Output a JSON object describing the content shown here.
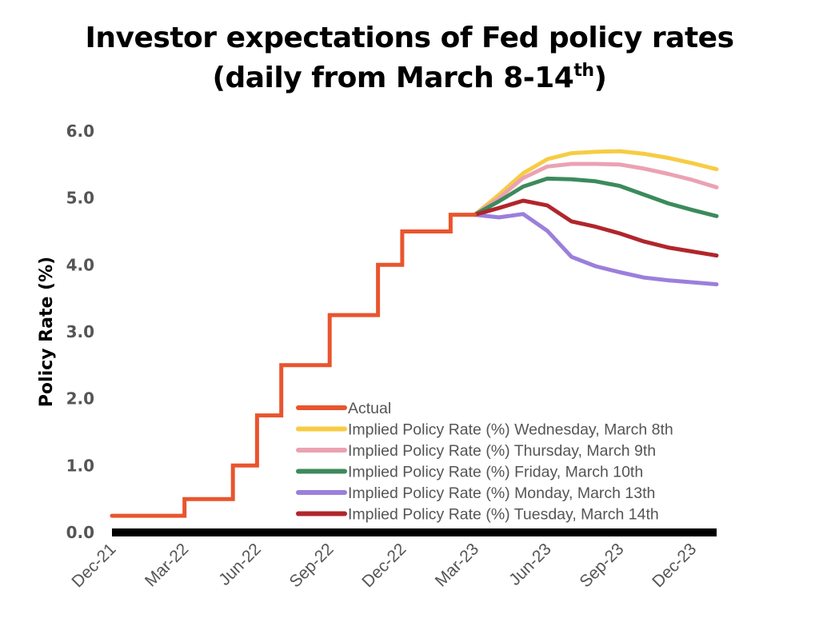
{
  "chart_data": {
    "type": "line",
    "title_line1": "Investor expectations of Fed policy rates",
    "title_line2": "(daily from March 8-14",
    "title_sup": "th",
    "title_close": ")",
    "ylabel": "Policy Rate (%)",
    "xlabel": "",
    "ylim": [
      0,
      6
    ],
    "yticks": [
      "0.0",
      "1.0",
      "2.0",
      "3.0",
      "4.0",
      "5.0",
      "6.0"
    ],
    "x_ticks": [
      "Dec-21",
      "Mar-22",
      "Jun-22",
      "Sep-22",
      "Dec-22",
      "Mar-23",
      "Jun-23",
      "Sep-23",
      "Dec-23"
    ],
    "xlim": [
      "Dec-21",
      "Jan-24"
    ],
    "grid": false,
    "legend_position": "bottom-right",
    "series": [
      {
        "name": "Actual",
        "color": "#e8552e",
        "step": true,
        "x": [
          "Dec-21",
          "Mar-22",
          "May-22",
          "Jun-22",
          "Jul-22",
          "Sep-22",
          "Nov-22",
          "Dec-22",
          "Feb-23",
          "Mar-23"
        ],
        "y": [
          0.25,
          0.5,
          1.0,
          1.75,
          2.5,
          3.25,
          4.0,
          4.5,
          4.75,
          4.75
        ]
      },
      {
        "name": "Implied Policy Rate (%) Wednesday, March 8th",
        "color": "#f7cc44",
        "x": [
          "Mar-23",
          "Apr-23",
          "May-23",
          "Jun-23",
          "Jul-23",
          "Aug-23",
          "Sep-23",
          "Oct-23",
          "Nov-23",
          "Dec-23",
          "Jan-24"
        ],
        "y": [
          4.75,
          5.05,
          5.37,
          5.58,
          5.67,
          5.69,
          5.7,
          5.66,
          5.6,
          5.52,
          5.43
        ]
      },
      {
        "name": "Implied Policy Rate (%) Thursday, March 9th",
        "color": "#eba2b2",
        "x": [
          "Mar-23",
          "Apr-23",
          "May-23",
          "Jun-23",
          "Jul-23",
          "Aug-23",
          "Sep-23",
          "Oct-23",
          "Nov-23",
          "Dec-23",
          "Jan-24"
        ],
        "y": [
          4.75,
          5.0,
          5.3,
          5.47,
          5.51,
          5.51,
          5.5,
          5.44,
          5.36,
          5.27,
          5.16
        ]
      },
      {
        "name": "Implied Policy Rate (%) Friday, March 10th",
        "color": "#3c8a5c",
        "x": [
          "Mar-23",
          "Apr-23",
          "May-23",
          "Jun-23",
          "Jul-23",
          "Aug-23",
          "Sep-23",
          "Oct-23",
          "Nov-23",
          "Dec-23",
          "Jan-24"
        ],
        "y": [
          4.75,
          4.95,
          5.17,
          5.29,
          5.28,
          5.25,
          5.18,
          5.05,
          4.92,
          4.82,
          4.73
        ]
      },
      {
        "name": "Implied Policy Rate (%) Monday, March 13th",
        "color": "#9b7fdb",
        "x": [
          "Mar-23",
          "Apr-23",
          "May-23",
          "Jun-23",
          "Jul-23",
          "Aug-23",
          "Sep-23",
          "Oct-23",
          "Nov-23",
          "Dec-23",
          "Jan-24"
        ],
        "y": [
          4.75,
          4.71,
          4.76,
          4.51,
          4.12,
          3.98,
          3.89,
          3.81,
          3.77,
          3.74,
          3.71
        ]
      },
      {
        "name": "Implied Policy Rate (%) Tuesday, March 14th",
        "color": "#b0262c",
        "x": [
          "Mar-23",
          "Apr-23",
          "May-23",
          "Jun-23",
          "Jul-23",
          "Aug-23",
          "Sep-23",
          "Oct-23",
          "Nov-23",
          "Dec-23",
          "Jan-24"
        ],
        "y": [
          4.75,
          4.85,
          4.96,
          4.89,
          4.65,
          4.57,
          4.47,
          4.35,
          4.26,
          4.2,
          4.14
        ]
      }
    ]
  }
}
